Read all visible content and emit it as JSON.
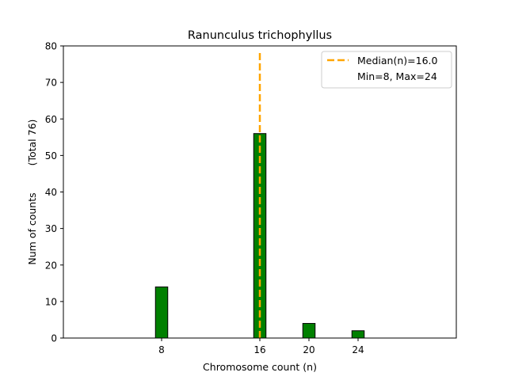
{
  "chart_data": {
    "type": "bar",
    "title": "Ranunculus trichophyllus",
    "xlabel": "Chromosome count (n)",
    "ylabel_main": "Num of counts",
    "ylabel_total": "(Total 76)",
    "xlim": [
      0,
      32
    ],
    "ylim": [
      0,
      80
    ],
    "xticks": [
      8,
      16,
      20,
      24
    ],
    "yticks": [
      0,
      10,
      20,
      30,
      40,
      50,
      60,
      70,
      80
    ],
    "bar_width": 1,
    "bar_color": "#008000",
    "bar_edge_color": "#000000",
    "bars": [
      {
        "x": 8,
        "value": 14
      },
      {
        "x": 16,
        "value": 56
      },
      {
        "x": 20,
        "value": 4
      },
      {
        "x": 24,
        "value": 2
      }
    ],
    "median": {
      "value": 16.0,
      "color": "#FFA500",
      "style": "dashed"
    },
    "legend": {
      "position": "upper right",
      "entries": [
        "Median(n)=16.0",
        "Min=8, Max=24"
      ]
    },
    "grid": false
  }
}
